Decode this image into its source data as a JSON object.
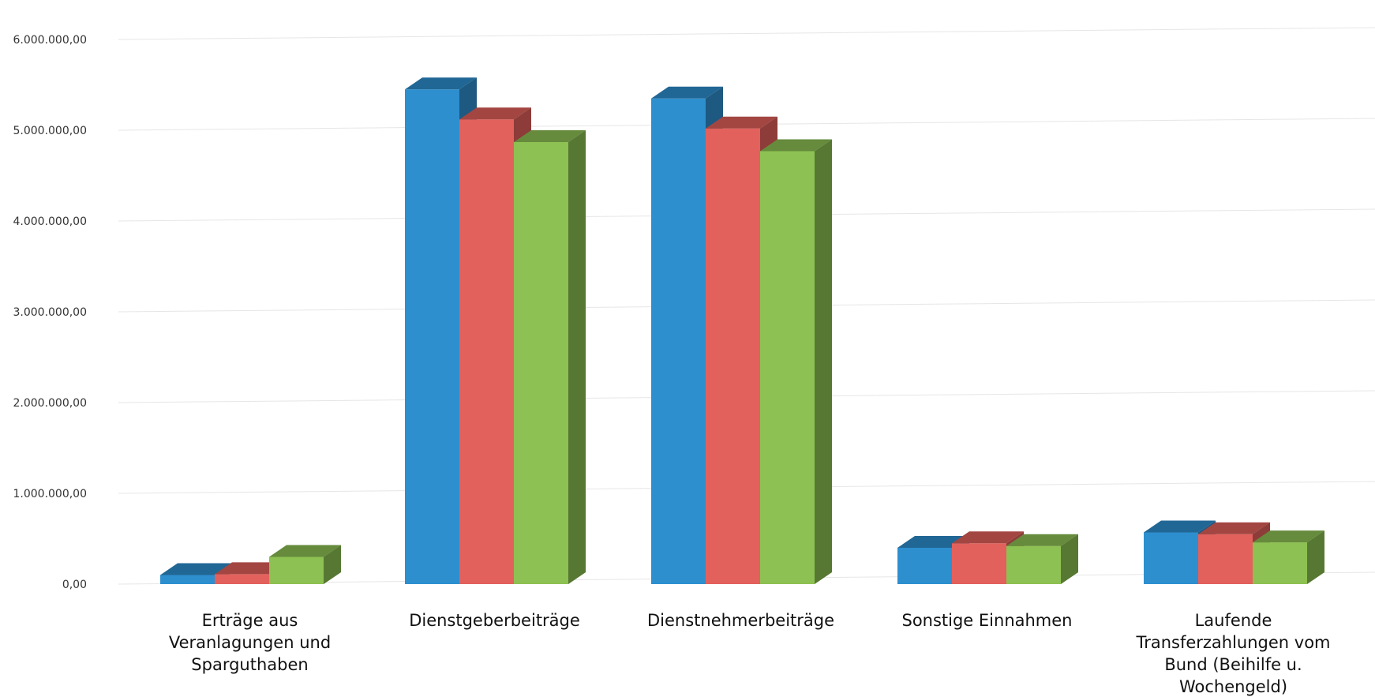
{
  "chart_data": {
    "type": "bar",
    "title": "",
    "xlabel": "",
    "ylabel": "",
    "ylim": [
      0,
      6000000
    ],
    "yticks": [
      {
        "value": 0,
        "label": "0,00"
      },
      {
        "value": 1000000,
        "label": "1.000.000,00"
      },
      {
        "value": 2000000,
        "label": "2.000.000,00"
      },
      {
        "value": 3000000,
        "label": "3.000.000,00"
      },
      {
        "value": 4000000,
        "label": "4.000.000,00"
      },
      {
        "value": 5000000,
        "label": "5.000.000,00"
      },
      {
        "value": 6000000,
        "label": "6.000.000,00"
      }
    ],
    "categories": [
      [
        "Erträge aus",
        "Veranlagungen und",
        "Sparguthaben"
      ],
      [
        "Dienstgeberbeiträge"
      ],
      [
        "Dienstnehmerbeiträge"
      ],
      [
        "Sonstige Einnahmen"
      ],
      [
        "Laufende",
        "Transferzahlungen vom",
        "Bund (Beihilfe u.",
        "Wochengeld)"
      ]
    ],
    "series": [
      {
        "color": "#2e8fcf",
        "values": [
          100000,
          5450000,
          5350000,
          400000,
          570000
        ]
      },
      {
        "color": "#e3615c",
        "values": [
          110000,
          5120000,
          5020000,
          450000,
          550000
        ]
      },
      {
        "color": "#8dc153",
        "values": [
          300000,
          4870000,
          4770000,
          420000,
          460000
        ]
      }
    ],
    "grid": true,
    "legend": "none"
  }
}
